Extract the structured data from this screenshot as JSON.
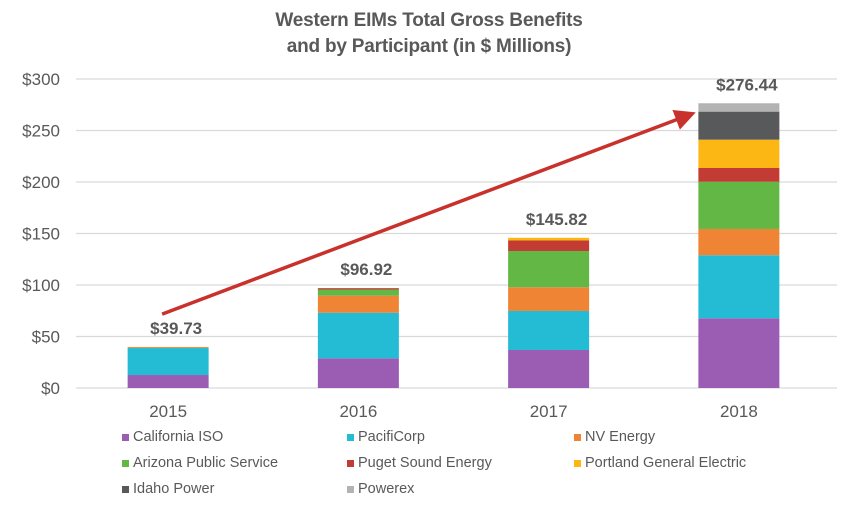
{
  "chart_data": {
    "type": "bar",
    "stacked": true,
    "title": "Western EIMs Total Gross Benefits and by Participant (in $ Millions)",
    "title_lines": [
      "Western EIMs Total Gross Benefits",
      "and by Participant (in $ Millions)"
    ],
    "xlabel": "",
    "ylabel": "",
    "categories": [
      "2015",
      "2016",
      "2017",
      "2018"
    ],
    "ylim": [
      0,
      300
    ],
    "yticks": [
      0,
      50,
      100,
      150,
      200,
      250,
      300
    ],
    "ytick_labels": [
      "$0",
      "$50",
      "$100",
      "$150",
      "$200",
      "$250",
      "$300"
    ],
    "grid": true,
    "legend_position": "bottom",
    "series": [
      {
        "name": "California ISO",
        "color": "#9B5CB4",
        "values": [
          12.6,
          28.8,
          36.9,
          67.7
        ]
      },
      {
        "name": "PacifiCorp",
        "color": "#24BCD4",
        "values": [
          26.2,
          44.3,
          37.9,
          61.2
        ]
      },
      {
        "name": "NV Energy",
        "color": "#EE8434",
        "values": [
          0.93,
          16.5,
          23.0,
          25.5
        ]
      },
      {
        "name": "Arizona Public Service",
        "color": "#63B845",
        "values": [
          0,
          6.0,
          35.2,
          45.9
        ]
      },
      {
        "name": "Puget Sound Energy",
        "color": "#C23B35",
        "values": [
          0,
          1.32,
          10.2,
          13.3
        ]
      },
      {
        "name": "Portland General Electric",
        "color": "#FDB714",
        "values": [
          0,
          0,
          2.62,
          27.5
        ]
      },
      {
        "name": "Idaho Power",
        "color": "#58595B",
        "values": [
          0,
          0,
          0,
          27.2
        ]
      },
      {
        "name": "Powerex",
        "color": "#B3B3B3",
        "values": [
          0,
          0,
          0,
          8.14
        ]
      }
    ],
    "totals": [
      39.73,
      96.92,
      145.82,
      276.44
    ],
    "total_labels": [
      "$39.73",
      "$96.92",
      "$145.82",
      "$276.44"
    ],
    "annotations": [
      {
        "type": "trend-arrow",
        "color": "#C9312C",
        "from_category": "2015",
        "to_category": "2018",
        "description": "Red arrow showing growth trend from 2015 to 2018"
      }
    ]
  }
}
